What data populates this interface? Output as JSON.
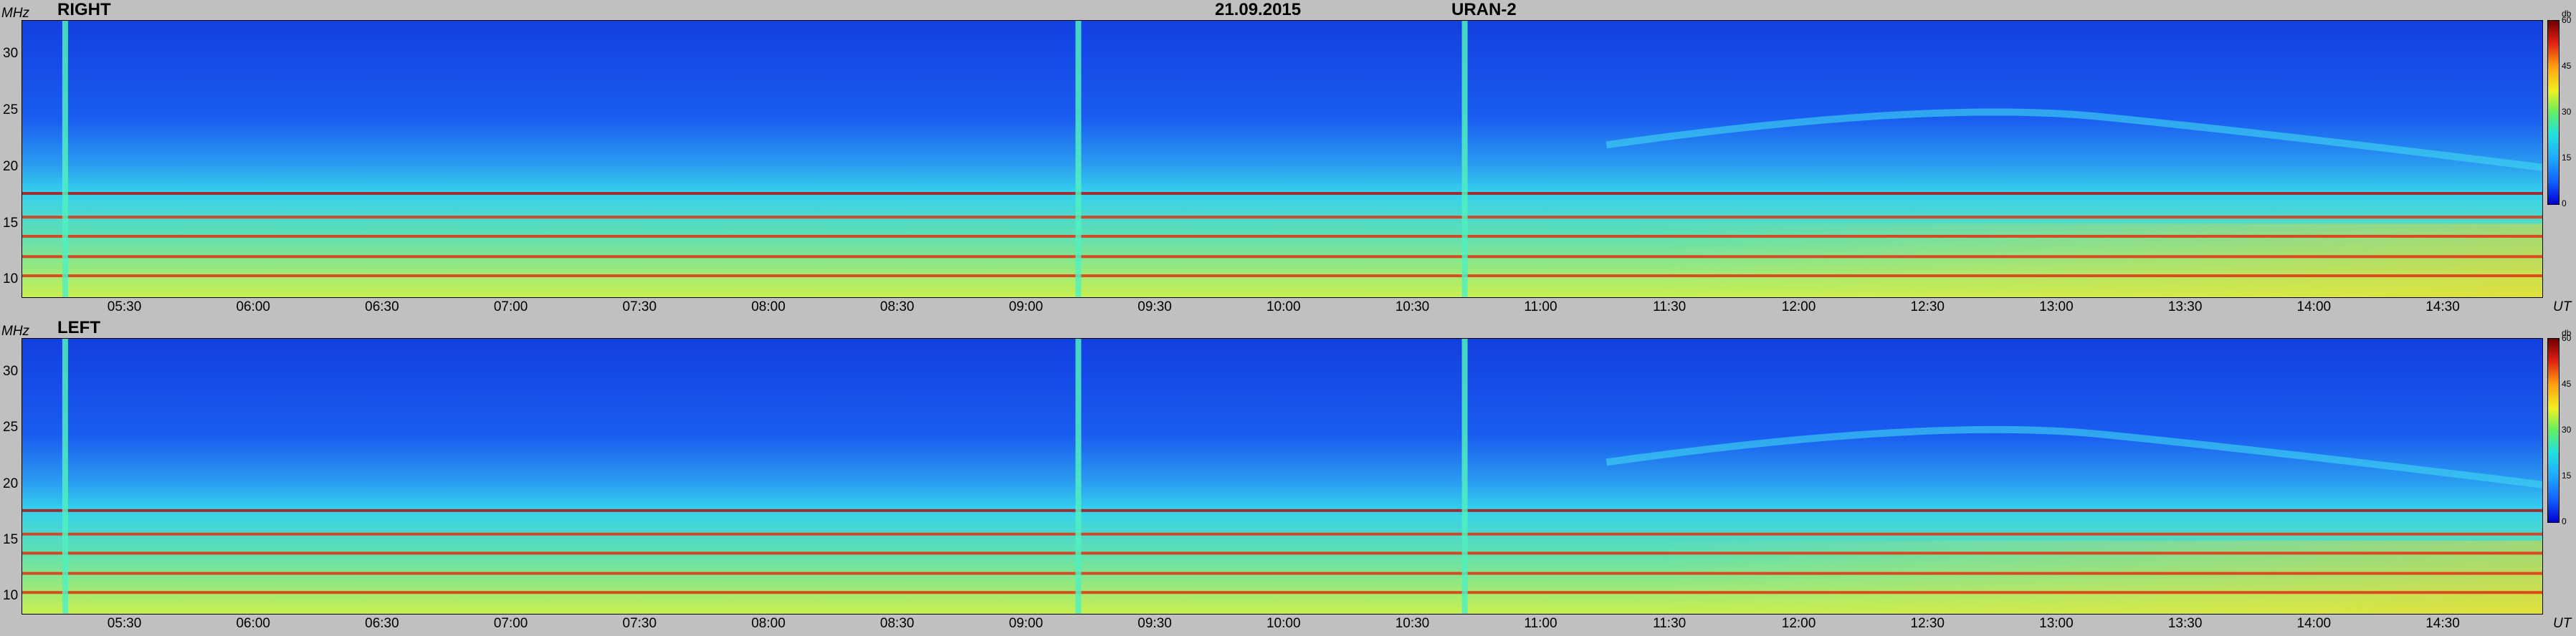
{
  "header": {
    "date": "21.09.2015",
    "station": "URAN-2"
  },
  "panels": [
    {
      "label": "RIGHT",
      "y_unit": "MHz",
      "x_unit": "UT"
    },
    {
      "label": "LEFT",
      "y_unit": "MHz",
      "x_unit": "UT"
    }
  ],
  "colorbar": {
    "unit": "db",
    "ticks": [
      "60",
      "45",
      "30",
      "15",
      "0"
    ],
    "range": [
      0,
      60
    ]
  },
  "colors": {
    "background_low": "#1446e6",
    "mid": "#30c8f0",
    "high": "#f0f020",
    "peak": "#c01010"
  },
  "chart_data": [
    {
      "type": "heatmap",
      "title": "RIGHT",
      "ylabel": "MHz",
      "xlabel": "UT",
      "ylim": [
        8.5,
        33
      ],
      "xlim": [
        "05:06",
        "14:53"
      ],
      "x_ticks": [
        "05:30",
        "06:00",
        "06:30",
        "07:00",
        "07:30",
        "08:00",
        "08:30",
        "09:00",
        "09:30",
        "10:00",
        "10:30",
        "11:00",
        "11:30",
        "12:00",
        "12:30",
        "13:00",
        "13:30",
        "14:00",
        "14:30"
      ],
      "y_ticks": [
        "10",
        "15",
        "20",
        "25",
        "30"
      ],
      "colorbar_range_db": [
        0,
        60
      ],
      "interference_bands_mhz": [
        17.7,
        15.6,
        13.9,
        12.1,
        10.4
      ],
      "bursts_ut": [
        "05:16",
        "09:12",
        "10:42"
      ]
    },
    {
      "type": "heatmap",
      "title": "LEFT",
      "ylabel": "MHz",
      "xlabel": "UT",
      "ylim": [
        8.5,
        33
      ],
      "xlim": [
        "05:06",
        "14:53"
      ],
      "x_ticks": [
        "05:30",
        "06:00",
        "06:30",
        "07:00",
        "07:30",
        "08:00",
        "08:30",
        "09:00",
        "09:30",
        "10:00",
        "10:30",
        "11:00",
        "11:30",
        "12:00",
        "12:30",
        "13:00",
        "13:30",
        "14:00",
        "14:30"
      ],
      "y_ticks": [
        "10",
        "15",
        "20",
        "25",
        "30"
      ],
      "colorbar_range_db": [
        0,
        60
      ],
      "interference_bands_mhz": [
        17.7,
        15.6,
        13.9,
        12.1,
        10.4
      ],
      "bursts_ut": [
        "05:16",
        "09:12",
        "10:42"
      ]
    }
  ]
}
